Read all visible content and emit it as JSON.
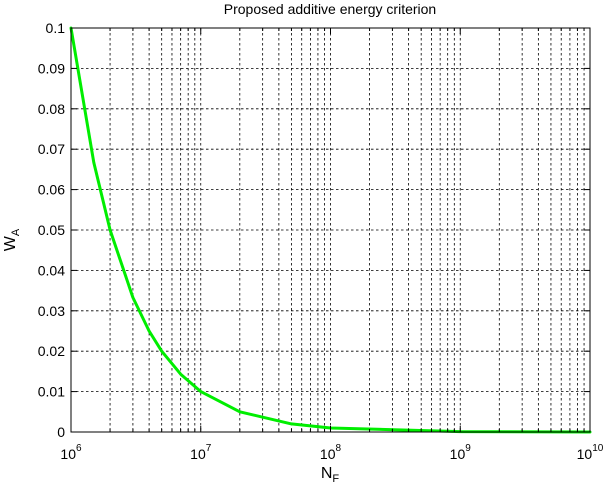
{
  "chart_data": {
    "type": "line",
    "title": "Proposed additive energy criterion",
    "xlabel": {
      "main": "N",
      "sub": "F"
    },
    "ylabel": {
      "main": "W",
      "sub": "A"
    },
    "xscale": "log",
    "xlim": [
      1000000,
      10000000000
    ],
    "ylim": [
      0,
      0.1
    ],
    "grid": true,
    "x_ticks": [
      {
        "base": "10",
        "exp": "6"
      },
      {
        "base": "10",
        "exp": "7"
      },
      {
        "base": "10",
        "exp": "8"
      },
      {
        "base": "10",
        "exp": "9"
      },
      {
        "base": "10",
        "exp": "10"
      }
    ],
    "y_ticks": [
      "0",
      "0.01",
      "0.02",
      "0.03",
      "0.04",
      "0.05",
      "0.06",
      "0.07",
      "0.08",
      "0.09",
      "0.1"
    ],
    "series": [
      {
        "color": "#00ee00",
        "x": [
          1000000,
          1500000,
          2000000,
          3000000,
          4000000,
          5000000,
          7000000,
          10000000,
          20000000,
          50000000,
          100000000,
          1000000000,
          10000000000
        ],
        "y": [
          0.1,
          0.0667,
          0.05,
          0.0333,
          0.025,
          0.02,
          0.0143,
          0.01,
          0.005,
          0.002,
          0.001,
          0.0001,
          1e-05
        ]
      }
    ]
  }
}
